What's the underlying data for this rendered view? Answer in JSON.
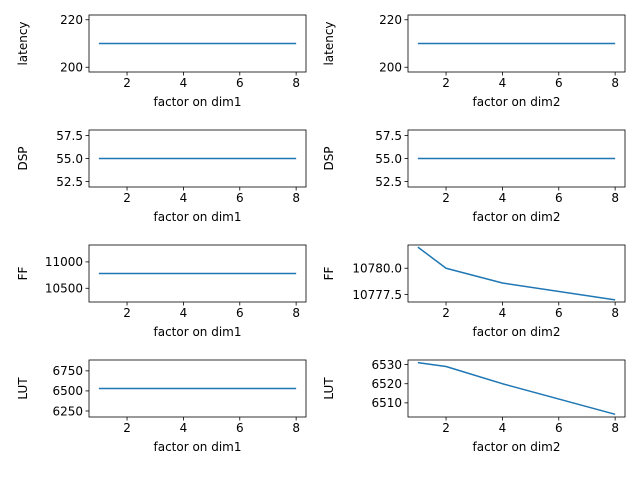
{
  "colors": {
    "line": "#1f77b4",
    "axis": "#000000",
    "background": "#ffffff"
  },
  "chart_data": [
    {
      "type": "line",
      "title": "",
      "xlabel": "factor on dim1",
      "ylabel": "latency",
      "x": [
        1,
        2,
        4,
        8
      ],
      "series": [
        {
          "values": [
            210,
            210,
            210,
            210
          ]
        }
      ],
      "xlim": [
        0.65,
        8.35
      ],
      "ylim": [
        198,
        222
      ],
      "xticks": [
        2,
        4,
        6,
        8
      ],
      "xtick_labels": [
        "2",
        "4",
        "6",
        "8"
      ],
      "yticks": [
        200,
        220
      ],
      "ytick_labels": [
        "200",
        "220"
      ],
      "grid": false
    },
    {
      "type": "line",
      "title": "",
      "xlabel": "factor on dim2",
      "ylabel": "latency",
      "x": [
        1,
        2,
        4,
        8
      ],
      "series": [
        {
          "values": [
            210,
            210,
            210,
            210
          ]
        }
      ],
      "xlim": [
        0.65,
        8.35
      ],
      "ylim": [
        198,
        222
      ],
      "xticks": [
        2,
        4,
        6,
        8
      ],
      "xtick_labels": [
        "2",
        "4",
        "6",
        "8"
      ],
      "yticks": [
        200,
        220
      ],
      "ytick_labels": [
        "200",
        "220"
      ],
      "grid": false
    },
    {
      "type": "line",
      "title": "",
      "xlabel": "factor on dim1",
      "ylabel": "DSP",
      "x": [
        1,
        2,
        4,
        8
      ],
      "series": [
        {
          "values": [
            55,
            55,
            55,
            55
          ]
        }
      ],
      "xlim": [
        0.65,
        8.35
      ],
      "ylim": [
        51.9,
        58.1
      ],
      "xticks": [
        2,
        4,
        6,
        8
      ],
      "xtick_labels": [
        "2",
        "4",
        "6",
        "8"
      ],
      "yticks": [
        52.5,
        55.0,
        57.5
      ],
      "ytick_labels": [
        "52.5",
        "55.0",
        "57.5"
      ],
      "grid": false
    },
    {
      "type": "line",
      "title": "",
      "xlabel": "factor on dim2",
      "ylabel": "DSP",
      "x": [
        1,
        2,
        4,
        8
      ],
      "series": [
        {
          "values": [
            55,
            55,
            55,
            55
          ]
        }
      ],
      "xlim": [
        0.65,
        8.35
      ],
      "ylim": [
        51.9,
        58.1
      ],
      "xticks": [
        2,
        4,
        6,
        8
      ],
      "xtick_labels": [
        "2",
        "4",
        "6",
        "8"
      ],
      "yticks": [
        52.5,
        55.0,
        57.5
      ],
      "ytick_labels": [
        "52.5",
        "55.0",
        "57.5"
      ],
      "grid": false
    },
    {
      "type": "line",
      "title": "",
      "xlabel": "factor on dim1",
      "ylabel": "FF",
      "x": [
        1,
        2,
        4,
        8
      ],
      "series": [
        {
          "values": [
            10779,
            10779,
            10779,
            10779
          ]
        }
      ],
      "xlim": [
        0.65,
        8.35
      ],
      "ylim": [
        10240,
        11320
      ],
      "xticks": [
        2,
        4,
        6,
        8
      ],
      "xtick_labels": [
        "2",
        "4",
        "6",
        "8"
      ],
      "yticks": [
        10500,
        11000
      ],
      "ytick_labels": [
        "10500",
        "11000"
      ],
      "grid": false
    },
    {
      "type": "line",
      "title": "",
      "xlabel": "factor on dim2",
      "ylabel": "FF",
      "x": [
        1,
        2,
        4,
        8
      ],
      "series": [
        {
          "values": [
            10782,
            10780,
            10778.6,
            10777
          ]
        }
      ],
      "xlim": [
        0.65,
        8.35
      ],
      "ylim": [
        10776.8,
        10782.2
      ],
      "xticks": [
        2,
        4,
        6,
        8
      ],
      "xtick_labels": [
        "2",
        "4",
        "6",
        "8"
      ],
      "yticks": [
        10777.5,
        10780.0
      ],
      "ytick_labels": [
        "10777.5",
        "10780.0"
      ],
      "grid": false
    },
    {
      "type": "line",
      "title": "",
      "xlabel": "factor on dim1",
      "ylabel": "LUT",
      "x": [
        1,
        2,
        4,
        8
      ],
      "series": [
        {
          "values": [
            6530,
            6530,
            6530,
            6530
          ]
        }
      ],
      "xlim": [
        0.65,
        8.35
      ],
      "ylim": [
        6175,
        6885
      ],
      "xticks": [
        2,
        4,
        6,
        8
      ],
      "xtick_labels": [
        "2",
        "4",
        "6",
        "8"
      ],
      "yticks": [
        6250,
        6500,
        6750
      ],
      "ytick_labels": [
        "6250",
        "6500",
        "6750"
      ],
      "grid": false
    },
    {
      "type": "line",
      "title": "",
      "xlabel": "factor on dim2",
      "ylabel": "LUT",
      "x": [
        1,
        2,
        4,
        8
      ],
      "series": [
        {
          "values": [
            6531,
            6529,
            6520,
            6504
          ]
        }
      ],
      "xlim": [
        0.65,
        8.35
      ],
      "ylim": [
        6502.6,
        6532.4
      ],
      "xticks": [
        2,
        4,
        6,
        8
      ],
      "xtick_labels": [
        "2",
        "4",
        "6",
        "8"
      ],
      "yticks": [
        6510,
        6520,
        6530
      ],
      "ytick_labels": [
        "6510",
        "6520",
        "6530"
      ],
      "grid": false
    }
  ]
}
